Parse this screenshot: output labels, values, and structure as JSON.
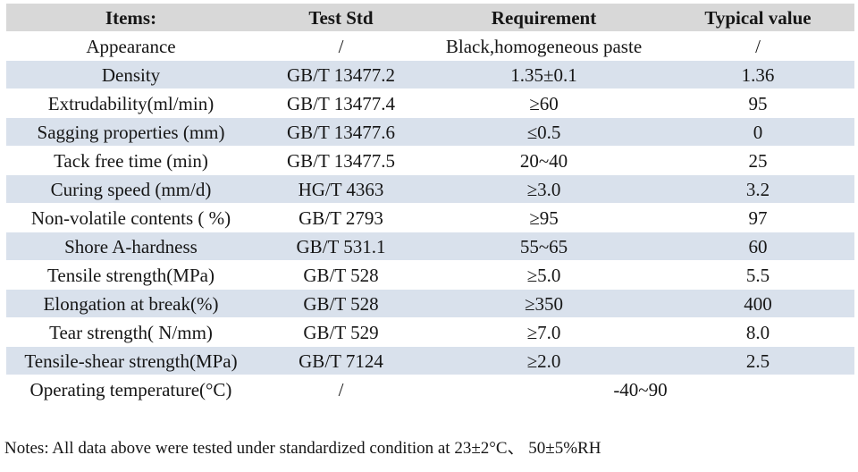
{
  "table": {
    "columns": [
      "Items:",
      "Test Std",
      "Requirement",
      "Typical value"
    ],
    "rows": [
      {
        "item": "Appearance",
        "std": "/",
        "req": "Black,homogeneous paste",
        "typ": "/"
      },
      {
        "item": "Density",
        "std": "GB/T 13477.2",
        "req": "1.35±0.1",
        "typ": "1.36"
      },
      {
        "item": "Extrudability(ml/min)",
        "std": "GB/T 13477.4",
        "req": "≥60",
        "typ": "95"
      },
      {
        "item": "Sagging properties (mm)",
        "std": "GB/T 13477.6",
        "req": "≤0.5",
        "typ": "0"
      },
      {
        "item": "Tack free time (min)",
        "std": "GB/T 13477.5",
        "req": "20~40",
        "typ": "25"
      },
      {
        "item": "Curing speed (mm/d)",
        "std": "HG/T 4363",
        "req": "≥3.0",
        "typ": "3.2"
      },
      {
        "item": "Non-volatile contents ( %)",
        "std": "GB/T 2793",
        "req": "≥95",
        "typ": "97"
      },
      {
        "item": "Shore A-hardness",
        "std": "GB/T 531.1",
        "req": "55~65",
        "typ": "60"
      },
      {
        "item": "Tensile strength(MPa)",
        "std": "GB/T 528",
        "req": "≥5.0",
        "typ": "5.5"
      },
      {
        "item": "Elongation at break(%)",
        "std": "GB/T 528",
        "req": "≥350",
        "typ": "400"
      },
      {
        "item": "Tear strength( N/mm)",
        "std": "GB/T 529",
        "req": "≥7.0",
        "typ": "8.0"
      },
      {
        "item": "Tensile-shear strength(MPa)",
        "std": "GB/T 7124",
        "req": "≥2.0",
        "typ": "2.5"
      },
      {
        "item": "Operating temperature(°C)",
        "std": "/",
        "req": "-40~90",
        "typ": null,
        "req_colspan": 2
      }
    ]
  },
  "notes": "Notes: All data above were tested under standardized condition at 23±2°C、 50±5%RH",
  "colors": {
    "header_bg": "#d8d8d8",
    "stripe_bg": "#d9e1ec",
    "text": "#161616"
  }
}
